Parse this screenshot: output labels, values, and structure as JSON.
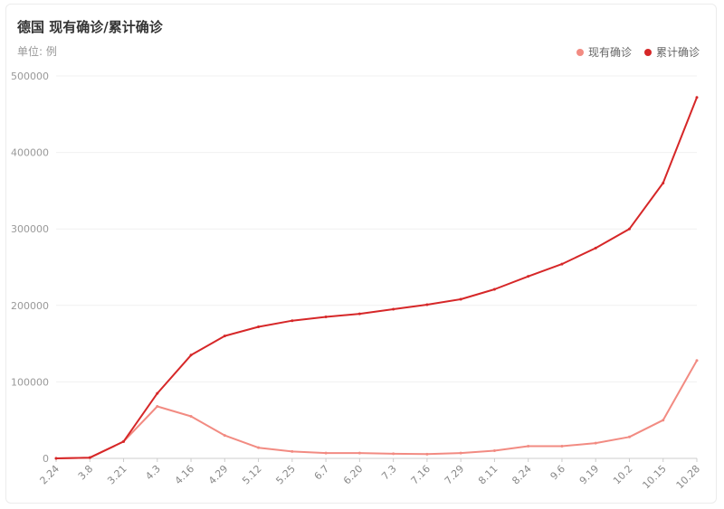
{
  "header": {
    "title": "德国 现有确诊/累计确诊",
    "unit": "单位: 例"
  },
  "legend": [
    {
      "label": "现有确诊",
      "color": "#f28b82"
    },
    {
      "label": "累计确诊",
      "color": "#d62728"
    }
  ],
  "chart_data": {
    "type": "line",
    "title": "德国 现有确诊/累计确诊",
    "ylabel": "单位: 例",
    "ylim": [
      0,
      500000
    ],
    "yticks": [
      0,
      100000,
      200000,
      300000,
      400000,
      500000
    ],
    "x": [
      "2.24",
      "3.8",
      "3.21",
      "4.3",
      "4.16",
      "4.29",
      "5.12",
      "5.25",
      "6.7",
      "6.20",
      "7.3",
      "7.16",
      "7.29",
      "8.11",
      "8.24",
      "9.6",
      "9.19",
      "10.2",
      "10.15",
      "10.28"
    ],
    "grid": true,
    "legend_position": "top-right",
    "series": [
      {
        "name": "现有确诊",
        "color": "#f28b82",
        "values": [
          16,
          900,
          22000,
          68000,
          55000,
          30000,
          14000,
          9000,
          7000,
          7000,
          6000,
          5500,
          7000,
          10000,
          16000,
          16000,
          20000,
          28000,
          50000,
          128000
        ]
      },
      {
        "name": "累计确诊",
        "color": "#d62728",
        "values": [
          16,
          1000,
          22000,
          85000,
          135000,
          160000,
          172000,
          180000,
          185000,
          189000,
          195000,
          201000,
          208000,
          221000,
          238000,
          254000,
          275000,
          300000,
          360000,
          472000
        ]
      }
    ]
  }
}
